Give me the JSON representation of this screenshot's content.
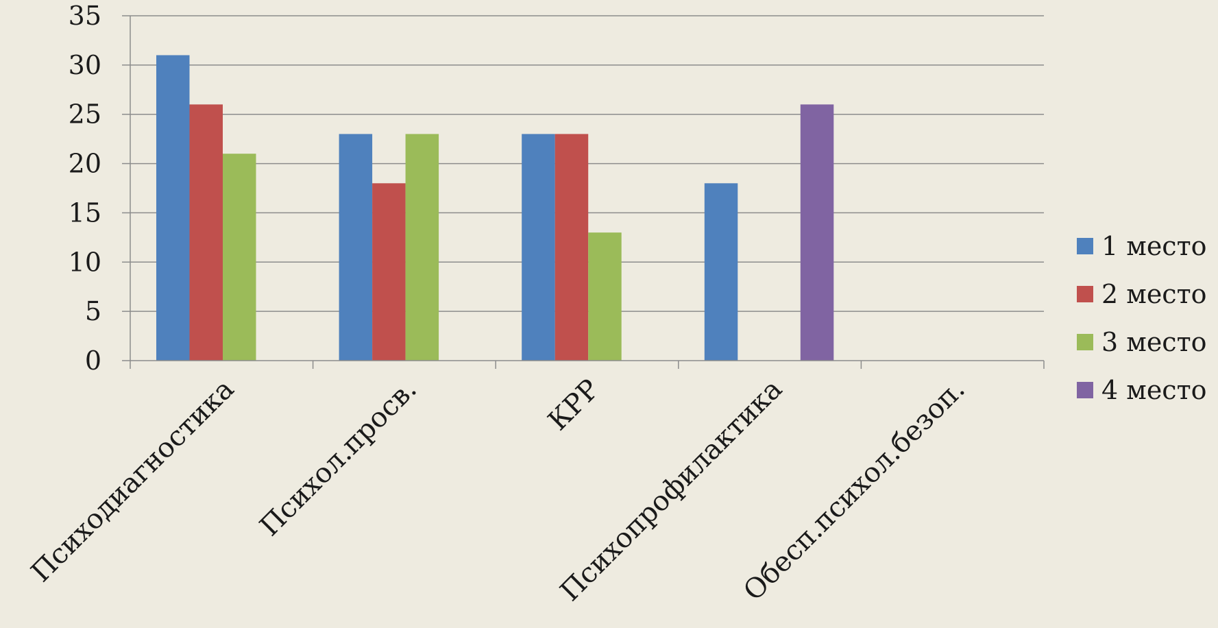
{
  "chart_data": {
    "type": "bar",
    "categories": [
      "Психодиагностика",
      "Психол.просв.",
      "КРР",
      "Психопрофилактика",
      "Обесп.психол.безоп."
    ],
    "series": [
      {
        "name": "1 место",
        "color": "#4F81BD",
        "values": [
          31,
          23,
          23,
          18,
          null
        ]
      },
      {
        "name": "2 место",
        "color": "#C0504D",
        "values": [
          26,
          18,
          23,
          null,
          null
        ]
      },
      {
        "name": "3 место",
        "color": "#9BBB59",
        "values": [
          21,
          23,
          13,
          null,
          null
        ]
      },
      {
        "name": "4 место",
        "color": "#8064A2",
        "values": [
          null,
          null,
          null,
          26,
          null
        ]
      }
    ],
    "y_ticks": [
      "0",
      "5",
      "10",
      "15",
      "20",
      "25",
      "30",
      "35"
    ],
    "ylim": [
      0,
      35
    ],
    "grid": true,
    "legend_position": "right"
  }
}
